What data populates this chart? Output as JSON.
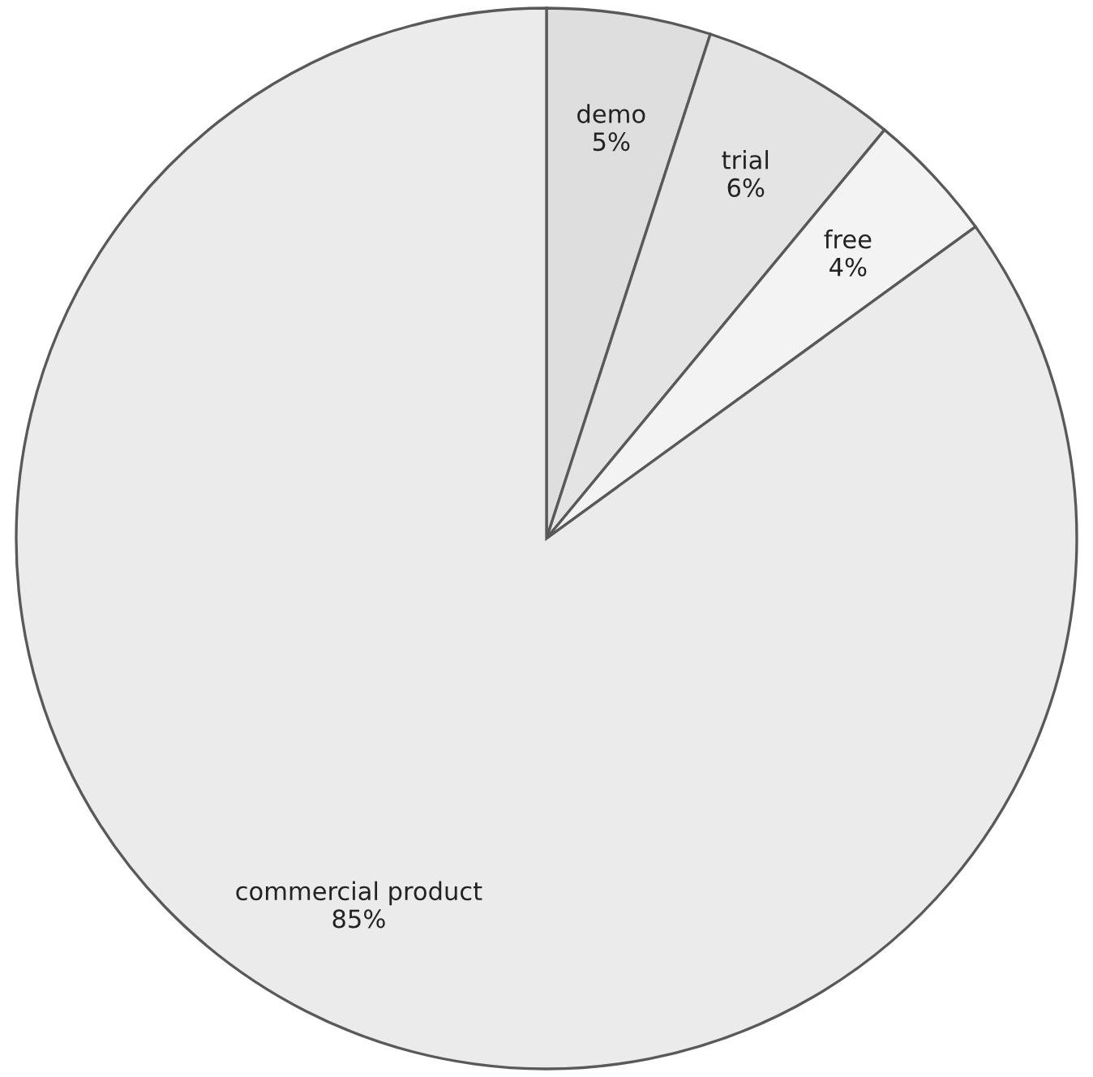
{
  "chart_data": {
    "type": "pie",
    "categories": [
      "demo",
      "trial",
      "free",
      "commercial product"
    ],
    "values": [
      5,
      6,
      4,
      85
    ],
    "value_labels": [
      "5%",
      "6%",
      "4%",
      "85%"
    ],
    "colors": [
      "#dedede",
      "#e4e4e4",
      "#f3f3f3",
      "#ebebeb"
    ],
    "legend": false
  }
}
